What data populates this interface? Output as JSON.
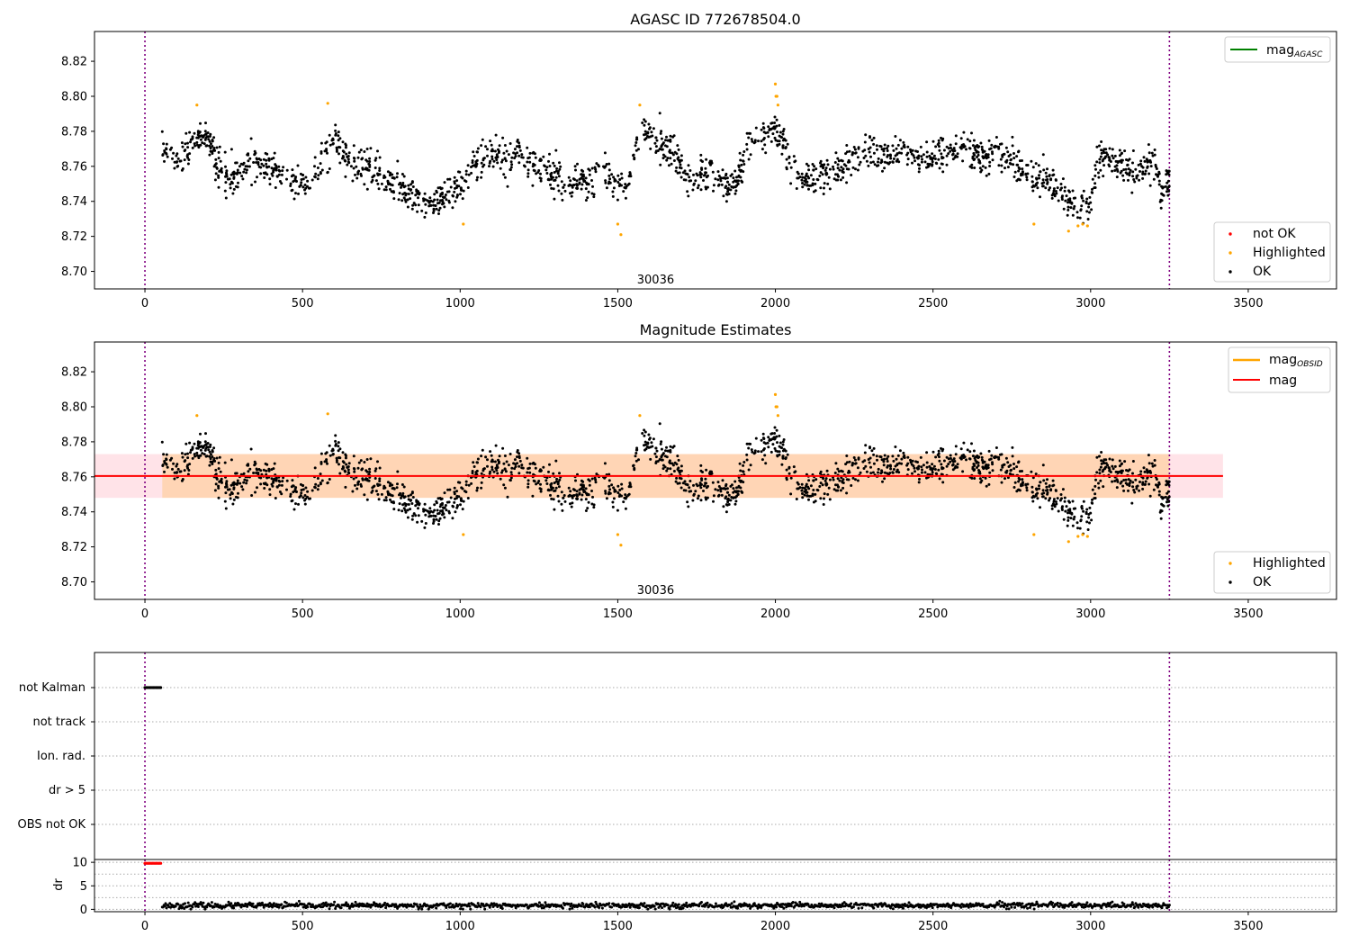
{
  "chart_data": [
    {
      "id": "agasc",
      "type": "scatter",
      "title": "AGASC ID 772678504.0",
      "xlim": [
        -160,
        3780
      ],
      "ylim": [
        8.69,
        8.837
      ],
      "xticks": [
        0,
        500,
        1000,
        1500,
        2000,
        2500,
        3000,
        3500
      ],
      "yticks": [
        8.7,
        8.72,
        8.74,
        8.76,
        8.78,
        8.8,
        8.82
      ],
      "obsid_label": "30036",
      "obsid_label_x": 1620,
      "vlines": [
        0,
        3250
      ],
      "legend_lines": [
        {
          "label_main": "mag",
          "label_sub": "AGASC",
          "color": "#008000"
        }
      ],
      "legend_points": [
        {
          "label": "not OK",
          "color": "#ff0000"
        },
        {
          "label": "Highlighted",
          "color": "#ffa500"
        },
        {
          "label": "OK",
          "color": "#000000"
        }
      ],
      "series": [
        {
          "name": "OK",
          "color": "#000000",
          "trend_x": [
            55,
            110,
            150,
            200,
            240,
            280,
            330,
            380,
            440,
            500,
            550,
            600,
            650,
            700,
            750,
            800,
            850,
            900,
            950,
            1000,
            1050,
            1100,
            1150,
            1200,
            1250,
            1300,
            1350,
            1400,
            1450,
            1500,
            1530,
            1570,
            1620,
            1680,
            1720,
            1760,
            1800,
            1840,
            1880,
            1920,
            1960,
            2000,
            2040,
            2080,
            2130,
            2200,
            2250,
            2300,
            2350,
            2400,
            2450,
            2500,
            2550,
            2600,
            2650,
            2700,
            2750,
            2800,
            2850,
            2900,
            2950,
            3000,
            3020,
            3060,
            3100,
            3150,
            3200,
            3225,
            3250
          ],
          "trend_y": [
            8.77,
            8.765,
            8.773,
            8.776,
            8.755,
            8.752,
            8.764,
            8.76,
            8.754,
            8.752,
            8.758,
            8.776,
            8.762,
            8.76,
            8.755,
            8.748,
            8.745,
            8.738,
            8.742,
            8.75,
            8.763,
            8.768,
            8.764,
            8.768,
            8.758,
            8.754,
            8.75,
            8.753,
            8.757,
            8.752,
            8.744,
            8.782,
            8.773,
            8.769,
            8.752,
            8.755,
            8.755,
            8.748,
            8.752,
            8.775,
            8.779,
            8.781,
            8.765,
            8.752,
            8.755,
            8.758,
            8.766,
            8.768,
            8.765,
            8.772,
            8.765,
            8.764,
            8.766,
            8.772,
            8.764,
            8.768,
            8.764,
            8.756,
            8.753,
            8.744,
            8.738,
            8.739,
            8.764,
            8.765,
            8.76,
            8.758,
            8.764,
            8.745,
            8.752
          ],
          "x_range": [
            55,
            3250
          ],
          "count": 1900,
          "scatter": 0.0075,
          "seed": 11
        },
        {
          "name": "Highlighted",
          "color": "#ffa500",
          "x": [
            165,
            580,
            1010,
            1500,
            1510,
            1570,
            2000,
            2002,
            2005,
            2008,
            2820,
            2930,
            2960,
            2975,
            2990
          ],
          "y": [
            8.795,
            8.796,
            8.727,
            8.727,
            8.721,
            8.795,
            8.807,
            8.8,
            8.8,
            8.795,
            8.727,
            8.723,
            8.726,
            8.727,
            8.726
          ]
        }
      ]
    },
    {
      "id": "estimates",
      "type": "scatter",
      "title": "Magnitude Estimates",
      "xlim": [
        -160,
        3780
      ],
      "ylim": [
        8.69,
        8.837
      ],
      "xticks": [
        0,
        500,
        1000,
        1500,
        2000,
        2500,
        3000,
        3500
      ],
      "yticks": [
        8.7,
        8.72,
        8.74,
        8.76,
        8.78,
        8.8,
        8.82
      ],
      "obsid_label": "30036",
      "obsid_label_x": 1620,
      "vlines": [
        0,
        3250
      ],
      "mag_line": 8.7605,
      "band_outer": [
        8.748,
        8.773
      ],
      "band_outer_x": [
        -160,
        3420
      ],
      "band_outer_color": "#ffc0cb",
      "band_inner": [
        8.748,
        8.773
      ],
      "band_inner_x": [
        55,
        3250
      ],
      "band_inner_color": "#ffa500",
      "legend_lines": [
        {
          "label_main": "mag",
          "label_sub": "OBSID",
          "color": "#ffa500"
        },
        {
          "label_main": "mag",
          "label_sub": "",
          "color": "#ff0000"
        }
      ],
      "legend_points": [
        {
          "label": "Highlighted",
          "color": "#ffa500"
        },
        {
          "label": "OK",
          "color": "#000000"
        }
      ]
    },
    {
      "id": "flags",
      "type": "scatter",
      "xlim": [
        -160,
        3780
      ],
      "vlines": [
        0,
        3250
      ],
      "categories": [
        "not Kalman",
        "not track",
        "Ion. rad.",
        "dr > 5",
        "OBS not OK"
      ],
      "flag_points": {
        "category": "not Kalman",
        "x_start": 0,
        "x_end": 50,
        "count": 14
      }
    },
    {
      "id": "dr",
      "type": "scatter",
      "ylabel": "dr",
      "xlim": [
        -160,
        3780
      ],
      "ylim": [
        -0.5,
        10.6
      ],
      "xticks": [
        0,
        500,
        1000,
        1500,
        2000,
        2500,
        3000,
        3500
      ],
      "yticks": [
        0,
        5,
        10
      ],
      "vlines": [
        0,
        3250
      ],
      "series": [
        {
          "name": "dr > 5",
          "color": "#ff0000",
          "x_start": 0,
          "x_end": 50,
          "value": 9.8,
          "count": 14
        },
        {
          "name": "dr",
          "color": "#000000",
          "x_range": [
            55,
            3250
          ],
          "count": 1200,
          "mean": 0.8,
          "spread": 0.5,
          "seed": 23
        }
      ]
    }
  ]
}
